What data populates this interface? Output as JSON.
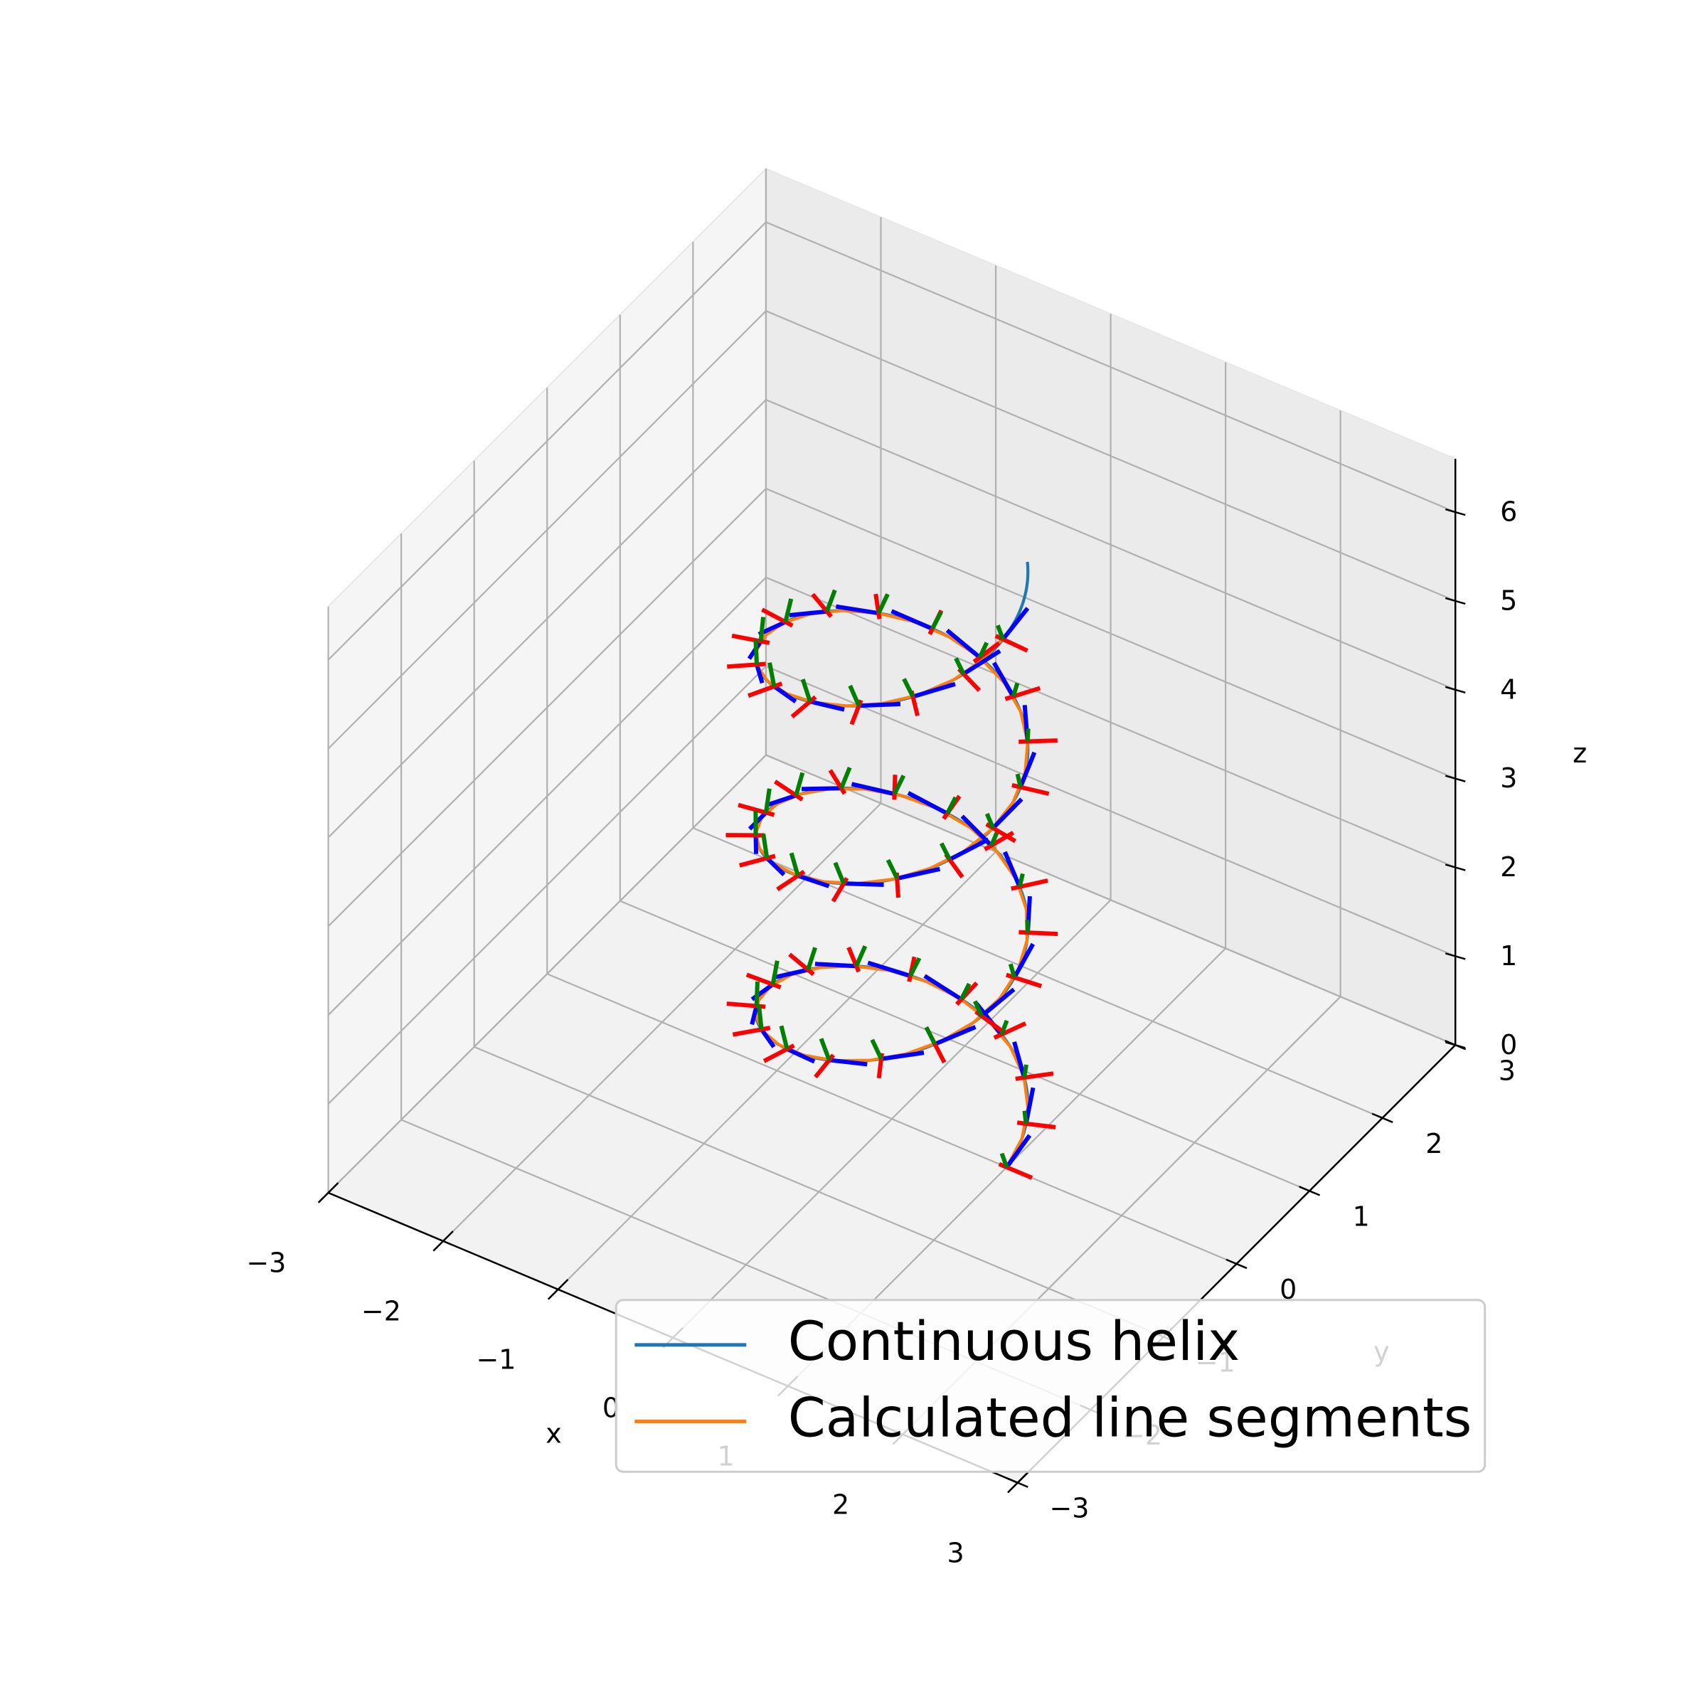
{
  "chart_data": {
    "type": "line",
    "projection": "3d",
    "title": "",
    "xlabel": "x",
    "ylabel": "y",
    "zlabel": "z",
    "xlim": [
      -3,
      3
    ],
    "ylim": [
      -3,
      3
    ],
    "zlim": [
      0,
      6
    ],
    "x_ticks": [
      "−3",
      "−2",
      "−1",
      "0",
      "1",
      "2",
      "3"
    ],
    "y_ticks": [
      "−3",
      "−2",
      "−1",
      "0",
      "1",
      "2",
      "3"
    ],
    "z_ticks": [
      "0",
      "1",
      "2",
      "3",
      "4",
      "5",
      "6"
    ],
    "grid": true,
    "legend_position": "lower right",
    "helix": {
      "radius": 1,
      "pitch": 2,
      "t_range": [
        0,
        19.5
      ],
      "parametric": "x = cos(t), y = sin(t), z = t / pi"
    },
    "series": [
      {
        "name": "Continuous helix",
        "color": "#1f77b4",
        "x": [
          1.0,
          0.0,
          -1.0,
          0.0,
          1.0,
          0.0,
          -1.0,
          0.0,
          1.0,
          0.0,
          -1.0,
          0.0,
          1.0,
          0.0
        ],
        "y": [
          0.0,
          1.0,
          0.0,
          -1.0,
          0.0,
          1.0,
          0.0,
          -1.0,
          0.0,
          1.0,
          0.0,
          -1.0,
          0.0,
          1.0
        ],
        "z": [
          0.0,
          0.5,
          1.0,
          1.5,
          2.0,
          2.5,
          3.0,
          3.5,
          4.0,
          4.5,
          5.0,
          5.5,
          6.0,
          6.5
        ]
      },
      {
        "name": "Calculated line segments",
        "color": "#ff7f0e",
        "x": [
          1.0,
          0.0,
          -1.0,
          0.0,
          1.0,
          0.0,
          -1.0,
          0.0,
          1.0,
          0.0,
          -1.0,
          0.0,
          1.0
        ],
        "y": [
          0.0,
          1.0,
          0.0,
          -1.0,
          0.0,
          1.0,
          0.0,
          -1.0,
          0.0,
          1.0,
          0.0,
          -1.0,
          0.0
        ],
        "z": [
          0.0,
          0.5,
          1.0,
          1.5,
          2.0,
          2.5,
          3.0,
          3.5,
          4.0,
          4.5,
          5.0,
          5.5,
          6.0
        ]
      }
    ],
    "frame_markers": {
      "count": 48,
      "t_range": [
        0,
        18.8
      ],
      "tangent_color": "#0000ff",
      "normal_color": "#ff0000",
      "binormal_color": "#008000"
    },
    "colors": {
      "pane": "#f2f2f2",
      "grid": "#b0b0b0",
      "helix": "#1f77b4",
      "segments": "#ff7f0e"
    }
  }
}
